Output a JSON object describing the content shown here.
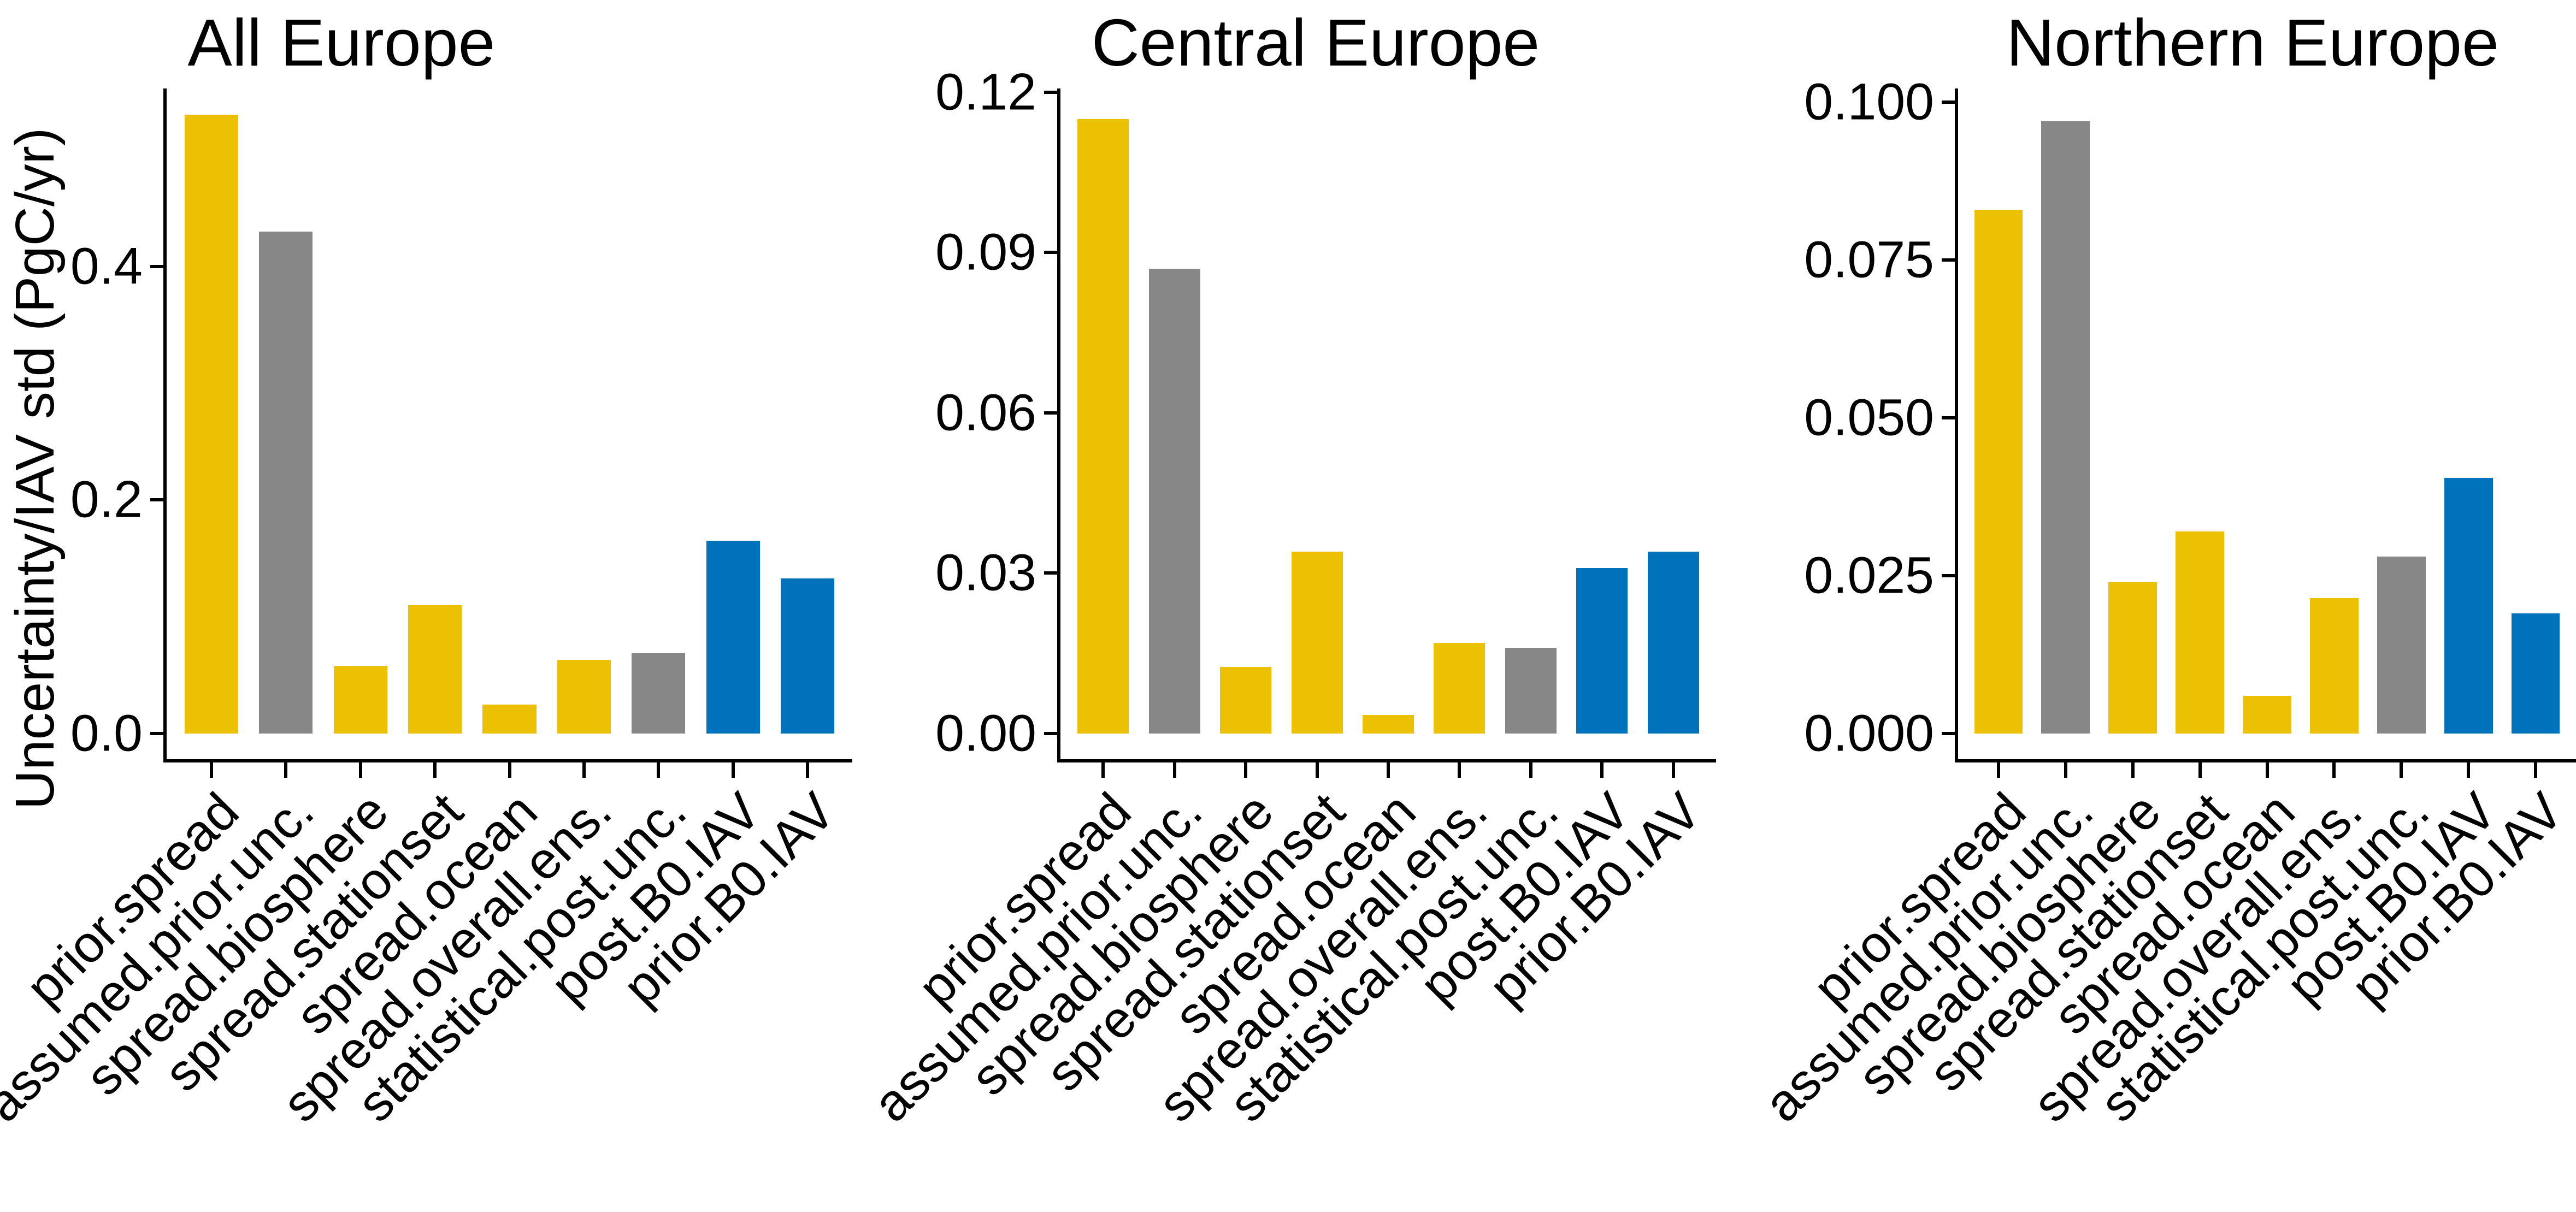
{
  "figure": {
    "ylabel": "Uncertainty/IAV std (PgC/yr)"
  },
  "palette": {
    "gold": "#ECC104",
    "gray": "#878787",
    "blue": "#0072BC",
    "axis": "#000000",
    "text": "#000000",
    "background": "#FFFFFF"
  },
  "categories": [
    "prior.spread",
    "assumed.prior.unc.",
    "spread.biosphere",
    "spread.stationset",
    "spread.ocean",
    "spread.overall.ens.",
    "statistical.post.unc.",
    "post.B0.IAV",
    "prior.B0.IAV"
  ],
  "bar_color_keys": [
    "gold",
    "gray",
    "gold",
    "gold",
    "gold",
    "gold",
    "gray",
    "blue",
    "blue"
  ],
  "chart_data": [
    {
      "type": "bar",
      "title": "All Europe",
      "xlabel": "",
      "ylabel": "Uncertainty/IAV std (PgC/yr)",
      "categories": [
        "prior.spread",
        "assumed.prior.unc.",
        "spread.biosphere",
        "spread.stationset",
        "spread.ocean",
        "spread.overall.ens.",
        "statistical.post.unc.",
        "post.B0.IAV",
        "prior.B0.IAV"
      ],
      "values": [
        0.53,
        0.43,
        0.058,
        0.11,
        0.025,
        0.063,
        0.069,
        0.165,
        0.133
      ],
      "bar_colors": [
        "gold",
        "gray",
        "gold",
        "gold",
        "gold",
        "gold",
        "gray",
        "blue",
        "blue"
      ],
      "ylim": [
        0,
        0.5525
      ],
      "yticks": [
        0,
        0.2,
        0.4
      ],
      "ytick_labels": [
        "0.0",
        "0.2",
        "0.4"
      ],
      "grid": false,
      "legend": false
    },
    {
      "type": "bar",
      "title": "Central Europe",
      "xlabel": "",
      "ylabel": "Uncertainty/IAV std (PgC/yr)",
      "categories": [
        "prior.spread",
        "assumed.prior.unc.",
        "spread.biosphere",
        "spread.stationset",
        "spread.ocean",
        "spread.overall.ens.",
        "statistical.post.unc.",
        "post.B0.IAV",
        "prior.B0.IAV"
      ],
      "values": [
        0.115,
        0.087,
        0.0125,
        0.034,
        0.0035,
        0.017,
        0.016,
        0.031,
        0.034
      ],
      "bar_colors": [
        "gold",
        "gray",
        "gold",
        "gold",
        "gold",
        "gold",
        "gray",
        "blue",
        "blue"
      ],
      "ylim": [
        0,
        0.1207
      ],
      "yticks": [
        0,
        0.03,
        0.06,
        0.09,
        0.12
      ],
      "ytick_labels": [
        "0.00",
        "0.03",
        "0.06",
        "0.09",
        "0.12"
      ],
      "grid": false,
      "legend": false
    },
    {
      "type": "bar",
      "title": "Northern Europe",
      "xlabel": "",
      "ylabel": "Uncertainty/IAV std (PgC/yr)",
      "categories": [
        "prior.spread",
        "assumed.prior.unc.",
        "spread.biosphere",
        "spread.stationset",
        "spread.ocean",
        "spread.overall.ens.",
        "statistical.post.unc.",
        "post.B0.IAV",
        "prior.B0.IAV"
      ],
      "values": [
        0.083,
        0.097,
        0.024,
        0.032,
        0.006,
        0.0215,
        0.028,
        0.0405,
        0.019
      ],
      "bar_colors": [
        "gold",
        "gray",
        "gold",
        "gold",
        "gold",
        "gold",
        "gray",
        "blue",
        "blue"
      ],
      "ylim": [
        0,
        0.1022
      ],
      "yticks": [
        0,
        0.025,
        0.05,
        0.075,
        0.1
      ],
      "ytick_labels": [
        "0.000",
        "0.025",
        "0.050",
        "0.075",
        "0.100"
      ],
      "grid": false,
      "legend": false
    }
  ]
}
